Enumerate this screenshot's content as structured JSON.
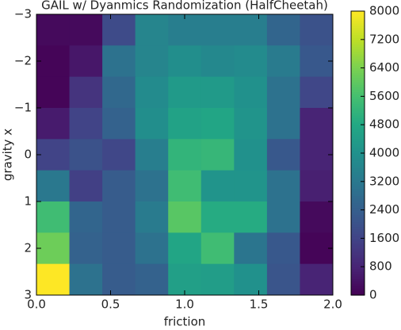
{
  "chart_data": {
    "type": "heatmap",
    "title": "GAIL w/ Dyanmics Randomization (HalfCheetah)",
    "x_label": "friction",
    "y_label": "gravity x",
    "xlim": [
      0,
      2
    ],
    "ylim": [
      -3,
      3
    ],
    "y_inverted": true,
    "xticks": [
      {
        "value": 0,
        "label": "0.0"
      },
      0.5,
      {
        "value": 1,
        "label": "1.0"
      },
      1.5,
      {
        "value": 2,
        "label": "2.0"
      }
    ],
    "yticks": [
      {
        "value": -3,
        "label": "−3"
      },
      {
        "value": -2,
        "label": "−2"
      },
      {
        "value": -1,
        "label": "−1"
      },
      0,
      1,
      2,
      3
    ],
    "colormap": "viridis",
    "clim": [
      0,
      8000
    ],
    "cticks": [
      0,
      800,
      1600,
      2400,
      3200,
      4000,
      4800,
      5600,
      6400,
      7200,
      8000
    ],
    "values": [
      [
        200,
        200,
        1800,
        3600,
        3400,
        3400,
        3400,
        2600,
        2000
      ],
      [
        100,
        500,
        3000,
        3600,
        3900,
        3700,
        3800,
        3300,
        2200
      ],
      [
        100,
        1200,
        2700,
        3800,
        4300,
        4300,
        4000,
        3000,
        1700
      ],
      [
        600,
        1600,
        2500,
        3900,
        4600,
        4700,
        4100,
        3000,
        800
      ],
      [
        1600,
        2000,
        1700,
        3400,
        5200,
        5300,
        4000,
        2200,
        800
      ],
      [
        3200,
        1500,
        2300,
        3000,
        5500,
        4100,
        4100,
        3000,
        700
      ],
      [
        5500,
        2600,
        2300,
        3300,
        5900,
        4900,
        4900,
        3000,
        200
      ],
      [
        6200,
        2500,
        2300,
        3000,
        4700,
        5500,
        3100,
        2200,
        100
      ],
      [
        8000,
        3000,
        2300,
        2500,
        4500,
        4400,
        4000,
        2100,
        800
      ]
    ]
  }
}
